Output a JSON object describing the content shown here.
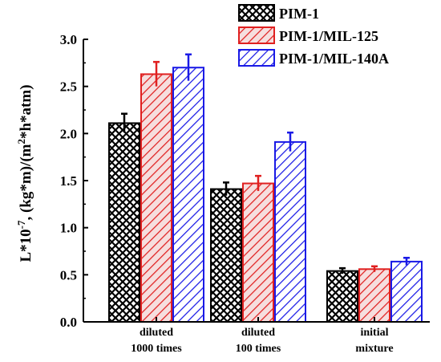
{
  "chart_data": {
    "type": "bar",
    "ylabel_main": "L*10",
    "ylabel_exp": "-7",
    "ylabel_rest": ", (kg*m)/(m",
    "ylabel_exp2": "2",
    "ylabel_end": "*h*atm)",
    "ylim": [
      0,
      3.0
    ],
    "yticks": [
      "0.0",
      "0.5",
      "1.0",
      "1.5",
      "2.0",
      "2.5",
      "3.0"
    ],
    "categories": [
      [
        "diluted",
        "1000 times"
      ],
      [
        "diluted",
        "100 times"
      ],
      [
        "initial",
        "mixture"
      ]
    ],
    "series": [
      {
        "name": "PIM-1",
        "values": [
          2.11,
          1.41,
          0.54
        ],
        "errors": [
          0.1,
          0.07,
          0.03
        ],
        "color": "#000000",
        "pattern": "crosshatch"
      },
      {
        "name": "PIM-1/MIL-125",
        "values": [
          2.63,
          1.47,
          0.56
        ],
        "errors": [
          0.13,
          0.08,
          0.03
        ],
        "color": "#e02020",
        "pattern": "diagonal"
      },
      {
        "name": "PIM-1/MIL-140A",
        "values": [
          2.7,
          1.91,
          0.64
        ],
        "errors": [
          0.14,
          0.1,
          0.04
        ],
        "color": "#1a1ae6",
        "pattern": "diagonal"
      }
    ],
    "legend_position": "top-right",
    "grid": false
  }
}
